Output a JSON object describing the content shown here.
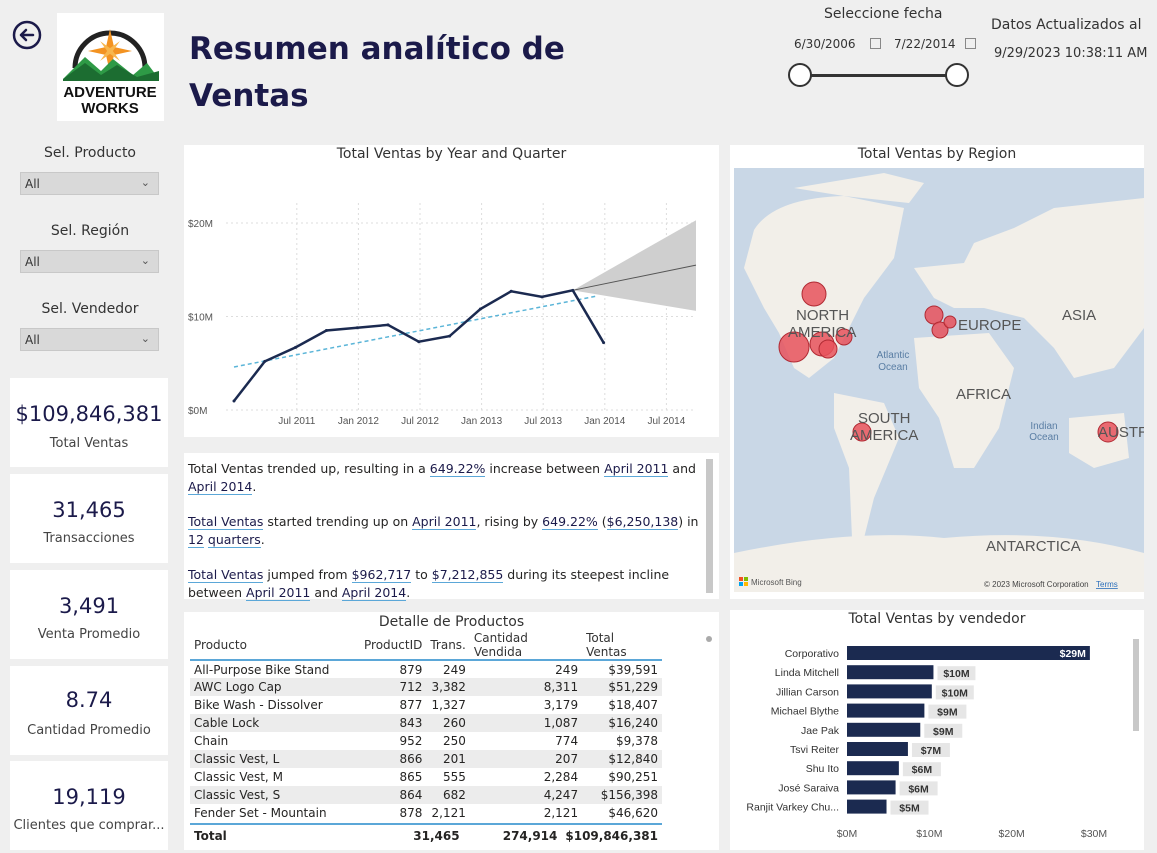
{
  "header": {
    "title_line1": "Resumen analítico de",
    "title_line2": "Ventas",
    "logo_line1": "ADVENTURE",
    "logo_line2": "WORKS"
  },
  "date_filter": {
    "label": "Seleccione fecha",
    "start": "6/30/2006",
    "end": "7/22/2014"
  },
  "updated": {
    "label": "Datos Actualizados al",
    "value": "9/29/2023 10:38:11 AM"
  },
  "slicers": [
    {
      "title": "Sel. Producto",
      "value": "All"
    },
    {
      "title": "Sel. Región",
      "value": "All"
    },
    {
      "title": "Sel. Vendedor",
      "value": "All"
    }
  ],
  "kpis": [
    {
      "value": "$109,846,381",
      "label": "Total Ventas"
    },
    {
      "value": "31,465",
      "label": "Transacciones"
    },
    {
      "value": "3,491",
      "label": "Venta Promedio"
    },
    {
      "value": "8.74",
      "label": "Cantidad Promedio"
    },
    {
      "value": "19,119",
      "label": "Clientes que comprar..."
    }
  ],
  "line_chart": {
    "title": "Total Ventas by Year and Quarter",
    "chart_data": {
      "type": "line",
      "x": [
        "Q1 2011",
        "Q2 2011",
        "Q3 2011",
        "Q4 2011",
        "Q1 2012",
        "Q2 2012",
        "Q3 2012",
        "Q4 2012",
        "Q1 2013",
        "Q2 2013",
        "Q3 2013",
        "Q4 2013",
        "Q1 2014",
        "Q2 2014"
      ],
      "values": [
        0.96,
        5.2,
        6.7,
        8.5,
        8.8,
        9.1,
        7.3,
        7.9,
        10.8,
        12.7,
        12.1,
        12.8,
        7.2,
        null
      ],
      "trend": [
        4.6,
        12.2
      ],
      "forecast": {
        "start": 12.8,
        "end": 15.5,
        "upper_end": 20.3,
        "lower_end": 10.6
      },
      "x_ticks": [
        "Jul 2011",
        "Jan 2012",
        "Jul 2012",
        "Jan 2013",
        "Jul 2013",
        "Jan 2014",
        "Jul 2014"
      ],
      "y_ticks": [
        "$0M",
        "$10M",
        "$20M"
      ],
      "ylim": [
        0,
        20
      ],
      "units": "M"
    }
  },
  "narrative": {
    "p1": [
      "Total Ventas trended up, resulting in a ",
      "649.22%",
      " increase between ",
      "April 2011",
      " and ",
      "April 2014",
      "."
    ],
    "p2": [
      "Total Ventas",
      " started trending up on ",
      "April 2011",
      ", rising by ",
      "649.22%",
      " (",
      "$6,250,138",
      ") in ",
      "12",
      " ",
      "quarters",
      "."
    ],
    "p3": [
      "Total Ventas",
      " jumped from ",
      "$962,717",
      " to ",
      "$7,212,855",
      " during its steepest incline between ",
      "April 2011",
      " and ",
      "April 2014",
      "."
    ]
  },
  "map": {
    "title": "Total Ventas by Region",
    "labels": [
      "NORTH",
      "AMERICA",
      "EUROPE",
      "ASIA",
      "AFRICA",
      "SOUTH",
      "AMERICA",
      "AUSTR",
      "ANTARCTICA",
      "Atlantic",
      "Ocean",
      "Indian",
      "Ocean"
    ],
    "attribution": "© 2023 Microsoft Corporation",
    "terms": "Terms",
    "bing": "Microsoft Bing"
  },
  "table": {
    "title": "Detalle de Productos",
    "columns": [
      "Producto",
      "ProductID",
      "Trans.",
      "Cantidad Vendida",
      "Total Ventas"
    ],
    "rows": [
      [
        "All-Purpose Bike Stand",
        "879",
        "249",
        "249",
        "$39,591"
      ],
      [
        "AWC Logo Cap",
        "712",
        "3,382",
        "8,311",
        "$51,229"
      ],
      [
        "Bike Wash - Dissolver",
        "877",
        "1,327",
        "3,179",
        "$18,407"
      ],
      [
        "Cable Lock",
        "843",
        "260",
        "1,087",
        "$16,240"
      ],
      [
        "Chain",
        "952",
        "250",
        "774",
        "$9,378"
      ],
      [
        "Classic Vest, L",
        "866",
        "201",
        "207",
        "$12,840"
      ],
      [
        "Classic Vest, M",
        "865",
        "555",
        "2,284",
        "$90,251"
      ],
      [
        "Classic Vest, S",
        "864",
        "682",
        "4,247",
        "$156,398"
      ],
      [
        "Fender Set - Mountain",
        "878",
        "2,121",
        "2,121",
        "$46,620"
      ]
    ],
    "total": [
      "Total",
      "",
      "31,465",
      "274,914",
      "$109,846,381"
    ]
  },
  "bar_chart": {
    "title": "Total Ventas by vendedor",
    "chart_data": {
      "type": "bar",
      "categories": [
        "Corporativo",
        "Linda Mitchell",
        "Jillian Carson",
        "Michael Blythe",
        "Jae Pak",
        "Tsvi Reiter",
        "Shu Ito",
        "José Saraiva",
        "Ranjit Varkey Chu..."
      ],
      "values": [
        29.5,
        10.5,
        10.3,
        9.4,
        8.9,
        7.4,
        6.3,
        5.9,
        4.8
      ],
      "labels": [
        "$29M",
        "$10M",
        "$10M",
        "$9M",
        "$9M",
        "$7M",
        "$6M",
        "$6M",
        "$5M"
      ],
      "x_ticks": [
        "$0M",
        "$10M",
        "$20M",
        "$30M"
      ],
      "xlim": [
        0,
        30
      ],
      "color": "#1b2a50"
    }
  }
}
